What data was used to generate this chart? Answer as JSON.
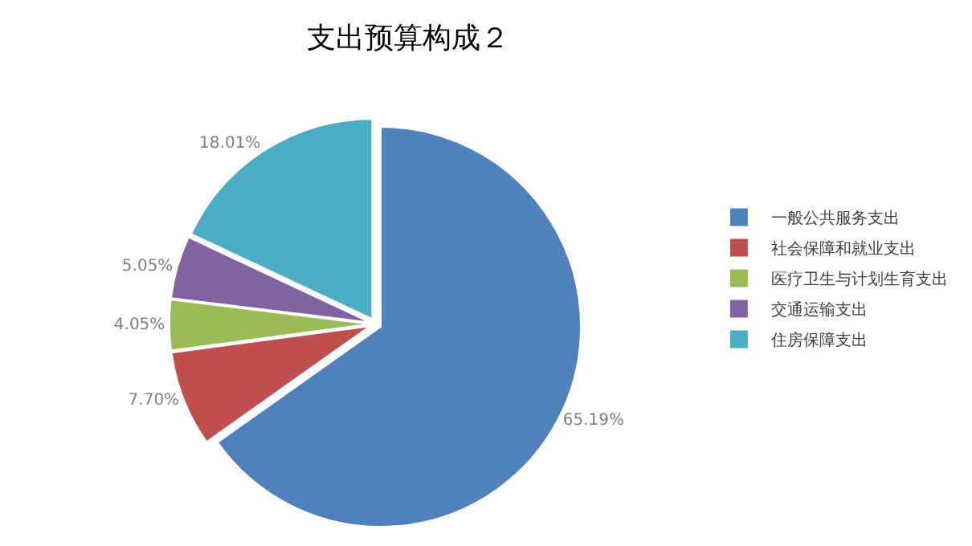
{
  "chart_data": {
    "type": "pie",
    "title": "支出预算构成２",
    "categories": [
      "一般公共服务支出",
      "社会保障和就业支出",
      "医疗卫生与计划生育支出",
      "交通运输支出",
      "住房保障支出"
    ],
    "values": [
      65.19,
      7.7,
      4.05,
      5.05,
      18.01
    ],
    "value_labels": [
      "65.19%",
      "7.70%",
      "4.05%",
      "5.05%",
      "18.01%"
    ],
    "colors": [
      "#4f81bd",
      "#c0504d",
      "#9bbb59",
      "#8064a2",
      "#4bacc6"
    ],
    "legend": "right"
  }
}
